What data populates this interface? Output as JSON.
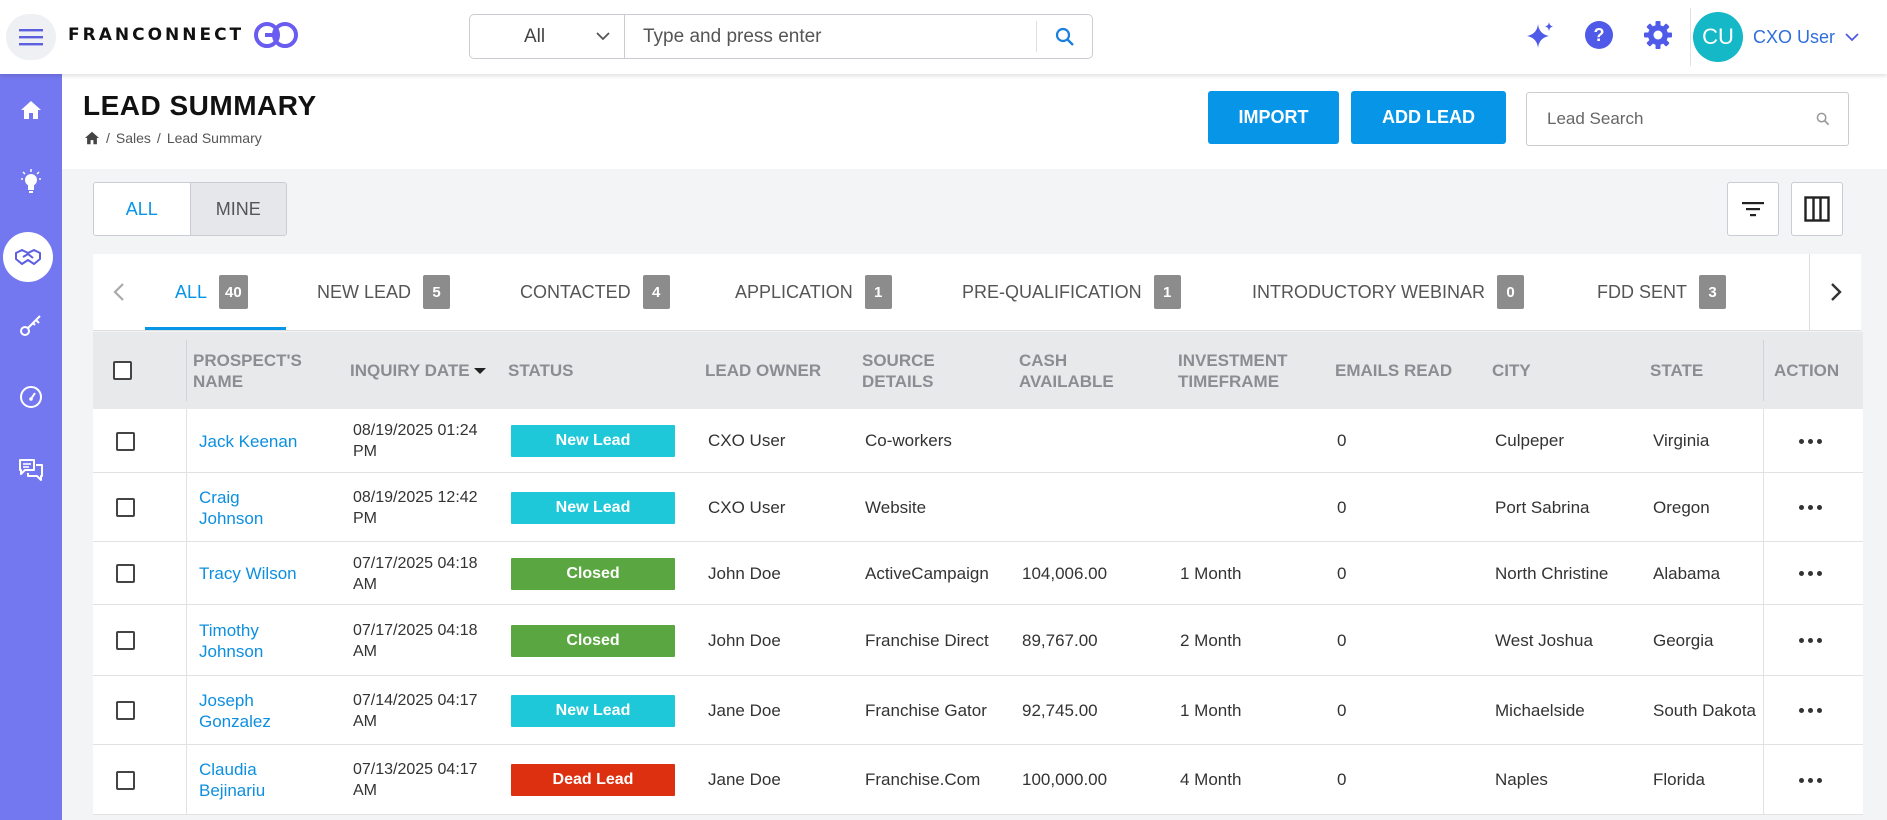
{
  "app": {
    "logo_text": "FRANCONNECT"
  },
  "search": {
    "scope_value": "All",
    "placeholder": "Type and press enter"
  },
  "user": {
    "initials": "CU",
    "name": "CXO User"
  },
  "page": {
    "title": "LEAD SUMMARY",
    "breadcrumb": [
      "Sales",
      "Lead Summary"
    ],
    "import_label": "IMPORT",
    "add_lead_label": "ADD LEAD",
    "lead_search_placeholder": "Lead Search"
  },
  "view_toggle": {
    "all_label": "ALL",
    "mine_label": "MINE"
  },
  "tabs": [
    {
      "label": "ALL",
      "count": "40"
    },
    {
      "label": "NEW LEAD",
      "count": "5"
    },
    {
      "label": "CONTACTED",
      "count": "4"
    },
    {
      "label": "APPLICATION",
      "count": "1"
    },
    {
      "label": "PRE-QUALIFICATION",
      "count": "1"
    },
    {
      "label": "INTRODUCTORY WEBINAR",
      "count": "0"
    },
    {
      "label": "FDD SENT",
      "count": "3"
    }
  ],
  "table": {
    "headers": {
      "name": "PROSPECT'S NAME",
      "inquiry": "INQUIRY DATE",
      "status": "STATUS",
      "owner": "LEAD OWNER",
      "source": "SOURCE DETAILS",
      "cash": "CASH AVAILABLE",
      "timeframe": "INVESTMENT TIMEFRAME",
      "emails": "EMAILS READ",
      "city": "CITY",
      "state": "STATE",
      "action": "ACTION"
    },
    "rows": [
      {
        "name": "Jack Keenan",
        "date": "08/19/2025 01:24 PM",
        "status": "New Lead",
        "status_color": "#1fc8d8",
        "owner": "CXO User",
        "source": "Co-workers",
        "cash": "",
        "timeframe": "",
        "emails": "0",
        "city": "Culpeper",
        "state": "Virginia"
      },
      {
        "name": "Craig Johnson",
        "date": "08/19/2025 12:42 PM",
        "status": "New Lead",
        "status_color": "#1fc8d8",
        "owner": "CXO User",
        "source": "Website",
        "cash": "",
        "timeframe": "",
        "emails": "0",
        "city": "Port Sabrina",
        "state": "Oregon"
      },
      {
        "name": "Tracy Wilson",
        "date": "07/17/2025 04:18 AM",
        "status": "Closed",
        "status_color": "#5aa640",
        "owner": "John Doe",
        "source": "ActiveCampaign",
        "cash": "104,006.00",
        "timeframe": "1 Month",
        "emails": "0",
        "city": "North Christine",
        "state": "Alabama"
      },
      {
        "name": "Timothy Johnson",
        "date": "07/17/2025 04:18 AM",
        "status": "Closed",
        "status_color": "#5aa640",
        "owner": "John Doe",
        "source": "Franchise Direct",
        "cash": "89,767.00",
        "timeframe": "2 Month",
        "emails": "0",
        "city": "West Joshua",
        "state": "Georgia"
      },
      {
        "name": "Joseph Gonzalez",
        "date": "07/14/2025 04:17 AM",
        "status": "New Lead",
        "status_color": "#1fc8d8",
        "owner": "Jane Doe",
        "source": "Franchise Gator",
        "cash": "92,745.00",
        "timeframe": "1 Month",
        "emails": "0",
        "city": "Michaelside",
        "state": "South Dakota"
      },
      {
        "name": "Claudia Bejinariu",
        "date": "07/13/2025 04:17 AM",
        "status": "Dead Lead",
        "status_color": "#dd3010",
        "owner": "Jane Doe",
        "source": "Franchise.Com",
        "cash": "100,000.00",
        "timeframe": "4 Month",
        "emails": "0",
        "city": "Naples",
        "state": "Florida"
      }
    ]
  },
  "colors": {
    "sidebar": "#7478f0",
    "primary": "#0795e8",
    "link": "#0d8fe0",
    "avatar": "#14b8c6"
  }
}
